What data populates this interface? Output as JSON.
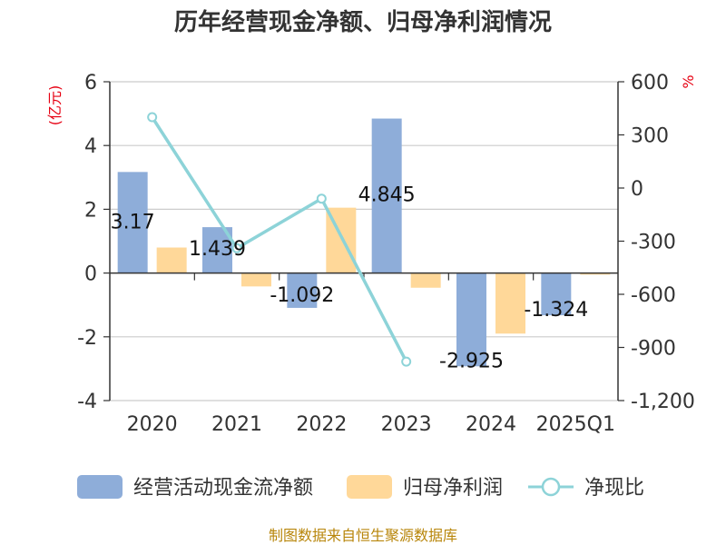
{
  "chart_data": {
    "type": "bar",
    "title": "历年经营现金净额、归母净利润情况",
    "categories": [
      "2020",
      "2021",
      "2022",
      "2023",
      "2024",
      "2025Q1"
    ],
    "y_left": {
      "label": "(亿元)",
      "min": -4,
      "max": 6,
      "step": 2,
      "ticks": [
        "-4",
        "-2",
        "0",
        "2",
        "4",
        "6"
      ]
    },
    "y_right": {
      "label": "%",
      "min": -1200,
      "max": 600,
      "step": 300,
      "ticks": [
        "-1,200",
        "-900",
        "-600",
        "-300",
        "0",
        "300",
        "600"
      ]
    },
    "series": [
      {
        "name": "经营活动现金流净额",
        "type": "bar",
        "axis": "left",
        "color": "#8eadd9",
        "values": [
          3.17,
          1.439,
          -1.092,
          4.845,
          -2.925,
          -1.324
        ],
        "labels": [
          "3.17",
          "1.439",
          "-1.092",
          "4.845",
          "-2.925",
          "-1.324"
        ]
      },
      {
        "name": "归母净利润",
        "type": "bar",
        "axis": "left",
        "color": "#ffd899",
        "values": [
          0.8,
          -0.42,
          2.05,
          -0.46,
          -1.9,
          -0.05
        ]
      },
      {
        "name": "净现比",
        "type": "line",
        "axis": "right",
        "color": "#8dd3d8",
        "values": [
          400,
          -340,
          -60,
          -980,
          null,
          null
        ]
      }
    ],
    "source": "制图数据来自恒生聚源数据库"
  }
}
